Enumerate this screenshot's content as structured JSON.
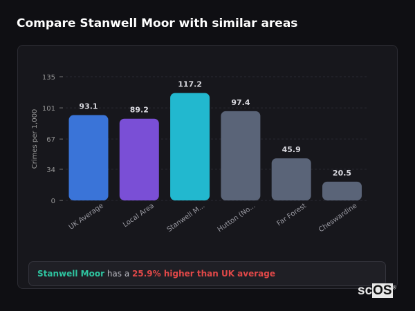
{
  "title": "Compare Stanwell Moor with similar areas",
  "chart_data": {
    "type": "bar",
    "categories": [
      "UK Average",
      "Local Area",
      "Stanwell M...",
      "Hutton (No...",
      "Far Forest",
      "Cheswardine"
    ],
    "values": [
      93.1,
      89.2,
      117.2,
      97.4,
      45.9,
      20.5
    ],
    "colors": [
      "#3a74d8",
      "#7a4fd6",
      "#22b8cf",
      "#5a6478",
      "#5a6478",
      "#5a6478"
    ],
    "ylabel": "Crimes per 1,000",
    "yticks": [
      0,
      34,
      67,
      101,
      135
    ],
    "ylim": [
      0,
      135
    ],
    "grid": true,
    "data_labels": true
  },
  "summary": {
    "area": "Stanwell Moor",
    "middle": " has a ",
    "comparison": "25.9% higher than UK average"
  },
  "logo": {
    "text_a": "sc",
    "text_b": "OS",
    "mark": "®"
  }
}
